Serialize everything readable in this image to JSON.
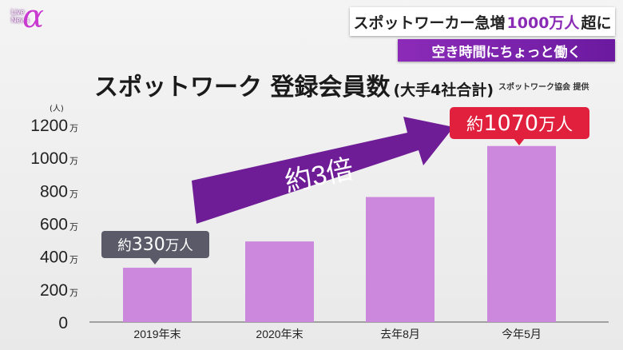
{
  "logo": {
    "line1": "Live",
    "line2": "News",
    "symbol": "α"
  },
  "banner_top": {
    "prefix": "スポットワーカー急増",
    "highlight": "1000万人",
    "suffix": "超に"
  },
  "banner_sub": "空き時間にちょっと働く",
  "source": "スポットワーク協会 提供",
  "annotations": {
    "arrow_text": "約3倍",
    "callout_first": {
      "prefix": "約",
      "value": "330",
      "unit": "万人"
    },
    "callout_last": {
      "prefix": "約",
      "value": "1070",
      "unit": "万人"
    }
  },
  "colors": {
    "bar": "#cc88dd",
    "arrow": "#6e1d96",
    "callout_red": "#e0203c",
    "callout_dark": "#5a5a68",
    "accent": "#8a2bb5"
  },
  "chart_data": {
    "type": "bar",
    "title": "スポットワーク 登録会員数",
    "subtitle": "(大手4社合計)",
    "y_unit_label": "(人)",
    "y_tick_suffix": "万",
    "categories": [
      "2019年末",
      "2020年末",
      "去年8月",
      "今年5月"
    ],
    "values": [
      330,
      490,
      760,
      1070
    ],
    "ylim": [
      0,
      1200
    ],
    "yticks": [
      0,
      200,
      400,
      600,
      800,
      1000,
      1200
    ],
    "ytick_labels": [
      "0",
      "200",
      "400",
      "600",
      "800",
      "1000",
      "1200"
    ],
    "grid": false,
    "legend": "none"
  }
}
